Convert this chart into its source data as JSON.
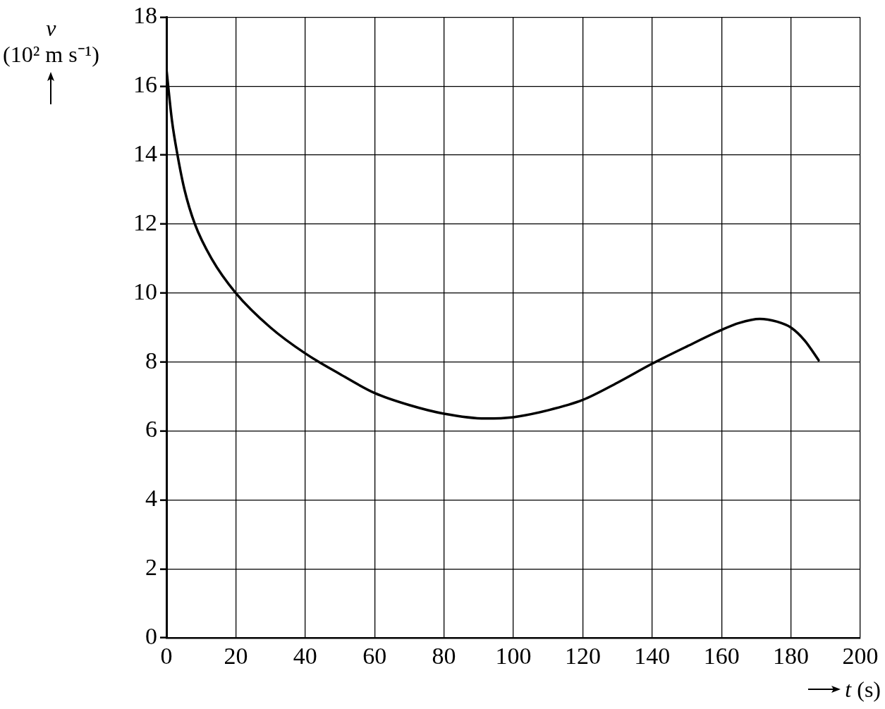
{
  "chart_data": {
    "type": "line",
    "xlabel": "t (s)",
    "ylabel": "v (10² m s⁻¹)",
    "x": [
      0,
      1.6,
      3.2,
      5.2,
      8.2,
      13,
      20,
      30,
      40,
      50,
      60,
      70,
      80,
      92,
      100,
      110,
      120,
      130,
      140,
      150,
      160,
      165,
      171,
      176,
      180,
      184,
      188
    ],
    "values": [
      16.5,
      15,
      14,
      13,
      12,
      11,
      10,
      9,
      8.25,
      7.65,
      7.1,
      6.75,
      6.5,
      6.36,
      6.4,
      6.6,
      6.9,
      7.4,
      7.95,
      8.45,
      8.93,
      9.13,
      9.25,
      9.17,
      9.0,
      8.62,
      8.05
    ],
    "color": "#000000",
    "xlim": [
      0,
      200
    ],
    "xticks": [
      0,
      20,
      40,
      60,
      80,
      100,
      120,
      140,
      160,
      180,
      200
    ],
    "ylim": [
      0,
      18
    ],
    "yticks": [
      0,
      2,
      4,
      6,
      8,
      10,
      12,
      14,
      16,
      18
    ],
    "grid": true
  }
}
